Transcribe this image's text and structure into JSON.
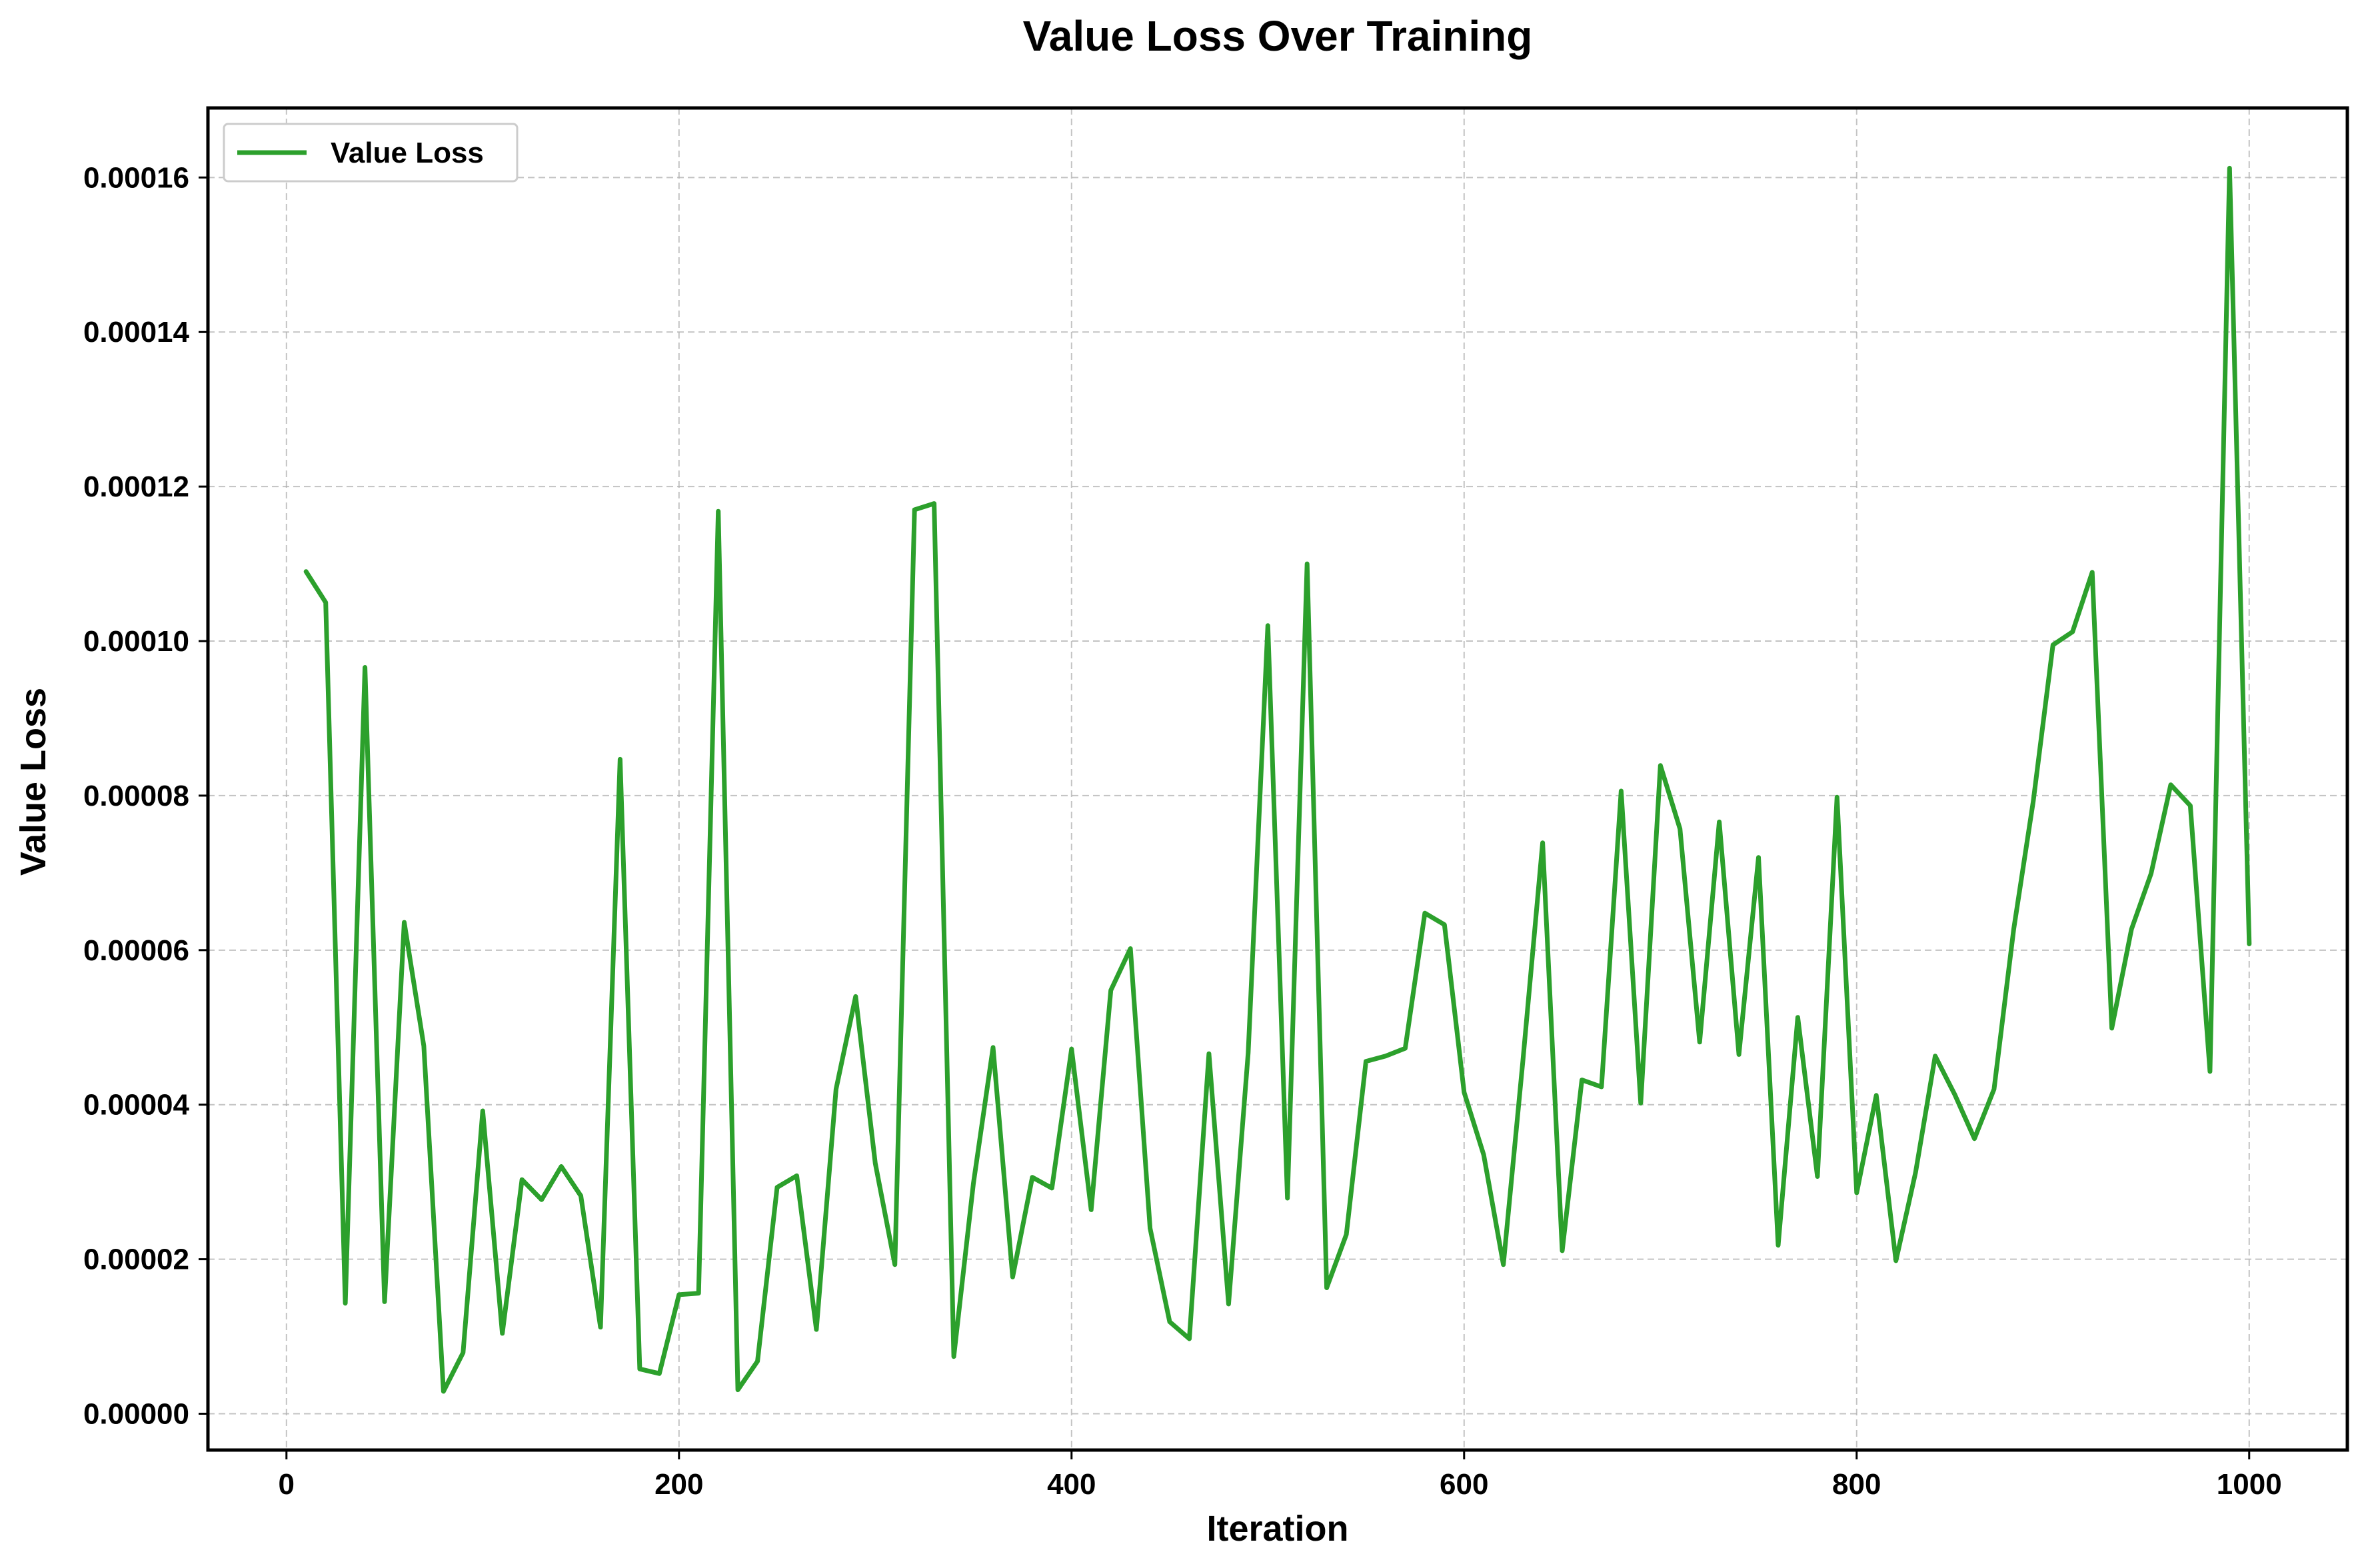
{
  "chart_data": {
    "type": "line",
    "title": "Value Loss Over Training",
    "xlabel": "Iteration",
    "ylabel": "Value Loss",
    "xlim": [
      -40,
      1050
    ],
    "ylim": [
      -4.7e-06,
      0.000169
    ],
    "xticks": [
      0,
      200,
      400,
      600,
      800,
      1000
    ],
    "xtick_labels": [
      "0",
      "200",
      "400",
      "600",
      "800",
      "1000"
    ],
    "yticks": [
      0,
      2e-05,
      4e-05,
      6e-05,
      8e-05,
      0.0001,
      0.00012,
      0.00014,
      0.00016
    ],
    "ytick_labels": [
      "0.00000",
      "0.00002",
      "0.00004",
      "0.00006",
      "0.00008",
      "0.00010",
      "0.00012",
      "0.00014",
      "0.00016"
    ],
    "grid": true,
    "legend_position": "top-left",
    "series": [
      {
        "name": "Value Loss",
        "color": "#2ca02c",
        "x": [
          10,
          20,
          30,
          40,
          50,
          60,
          70,
          80,
          90,
          100,
          110,
          120,
          130,
          140,
          150,
          160,
          170,
          180,
          190,
          200,
          210,
          220,
          230,
          240,
          250,
          260,
          270,
          280,
          290,
          300,
          310,
          320,
          330,
          340,
          350,
          360,
          370,
          380,
          390,
          400,
          410,
          420,
          430,
          440,
          450,
          460,
          470,
          480,
          490,
          500,
          510,
          520,
          530,
          540,
          550,
          560,
          570,
          580,
          590,
          600,
          610,
          620,
          630,
          640,
          650,
          660,
          670,
          680,
          690,
          700,
          710,
          720,
          730,
          740,
          750,
          760,
          770,
          780,
          790,
          800,
          810,
          820,
          830,
          840,
          850,
          860,
          870,
          880,
          890,
          900,
          910,
          920,
          930,
          940,
          950,
          960,
          970,
          980,
          990,
          1000
        ],
        "y": [
          0.000109,
          0.000105,
          1.43e-05,
          9.66e-05,
          1.45e-05,
          6.36e-05,
          4.76e-05,
          2.9e-06,
          7.9e-06,
          3.92e-05,
          1.04e-05,
          3.03e-05,
          2.77e-05,
          3.2e-05,
          2.82e-05,
          1.12e-05,
          8.47e-05,
          5.8e-06,
          5.2e-06,
          1.54e-05,
          1.56e-05,
          0.0001168,
          3.1e-06,
          6.8e-06,
          2.93e-05,
          3.08e-05,
          1.09e-05,
          4.2e-05,
          5.4e-05,
          3.24e-05,
          1.93e-05,
          0.000117,
          0.0001178,
          7.4e-06,
          2.98e-05,
          4.74e-05,
          1.77e-05,
          3.06e-05,
          2.92e-05,
          4.72e-05,
          2.64e-05,
          5.48e-05,
          6.02e-05,
          2.4e-05,
          1.19e-05,
          9.7e-06,
          4.66e-05,
          1.42e-05,
          4.67e-05,
          0.000102,
          2.79e-05,
          0.00011,
          1.63e-05,
          2.32e-05,
          4.56e-05,
          4.63e-05,
          4.73e-05,
          6.48e-05,
          6.33e-05,
          4.16e-05,
          3.35e-05,
          1.93e-05,
          4.58e-05,
          7.39e-05,
          2.11e-05,
          4.32e-05,
          4.23e-05,
          8.06e-05,
          4.02e-05,
          8.39e-05,
          7.57e-05,
          4.81e-05,
          7.66e-05,
          4.65e-05,
          7.2e-05,
          2.18e-05,
          5.13e-05,
          3.07e-05,
          7.98e-05,
          2.86e-05,
          4.12e-05,
          1.98e-05,
          3.12e-05,
          4.63e-05,
          4.13e-05,
          3.56e-05,
          4.2e-05,
          6.27e-05,
          7.93e-05,
          9.95e-05,
          0.0001012,
          0.0001089,
          4.99e-05,
          6.27e-05,
          6.99e-05,
          8.14e-05,
          7.87e-05,
          4.43e-05,
          0.0001612,
          6.08e-05
        ]
      }
    ]
  }
}
